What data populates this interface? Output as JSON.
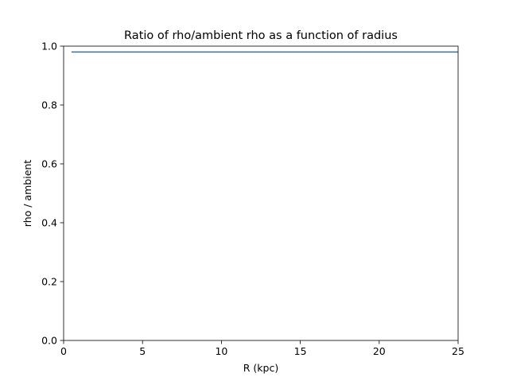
{
  "chart_data": {
    "type": "line",
    "title": "Ratio of rho/ambient rho as a function of radius",
    "xlabel": "R (kpc)",
    "ylabel": "rho / ambient",
    "xlim": [
      0,
      25
    ],
    "ylim": [
      0,
      1
    ],
    "xticks": [
      0,
      5,
      10,
      15,
      20,
      25
    ],
    "yticks": [
      0.0,
      0.2,
      0.4,
      0.6,
      0.8,
      1.0
    ],
    "xtick_labels": [
      "0",
      "5",
      "10",
      "15",
      "20",
      "25"
    ],
    "ytick_labels": [
      "0.0",
      "0.2",
      "0.4",
      "0.6",
      "0.8",
      "1.0"
    ],
    "grid": false,
    "series": [
      {
        "color": "#1f77b4",
        "x": [
          0.5,
          25
        ],
        "y": [
          0.98,
          0.98
        ]
      }
    ]
  }
}
